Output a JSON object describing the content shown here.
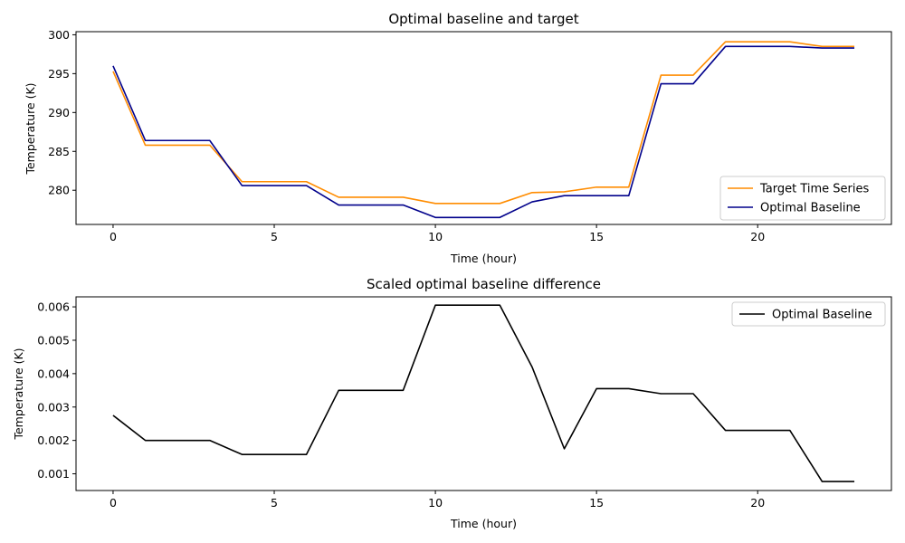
{
  "chart_data": [
    {
      "type": "line",
      "title": "Optimal baseline and target",
      "xlabel": "Time (hour)",
      "ylabel": "Temperature (K)",
      "xlim": [
        -1.15,
        24.15
      ],
      "ylim": [
        275.6,
        300.4
      ],
      "xticks": [
        0,
        5,
        10,
        15,
        20
      ],
      "yticks": [
        280,
        285,
        290,
        295,
        300
      ],
      "legend_position": "lower-right",
      "x": [
        0,
        1,
        2,
        3,
        4,
        5,
        6,
        7,
        8,
        9,
        10,
        11,
        12,
        13,
        14,
        15,
        16,
        17,
        18,
        19,
        20,
        21,
        22,
        23
      ],
      "series": [
        {
          "name": "Target Time Series",
          "color": "#ff8c00",
          "values": [
            295.3,
            285.8,
            285.8,
            285.8,
            281.1,
            281.1,
            281.1,
            279.1,
            279.1,
            279.1,
            278.3,
            278.3,
            278.3,
            279.7,
            279.8,
            280.4,
            280.4,
            294.8,
            294.8,
            299.1,
            299.1,
            299.1,
            298.5,
            298.5
          ]
        },
        {
          "name": "Optimal Baseline",
          "color": "#00008b",
          "values": [
            296.0,
            286.4,
            286.4,
            286.4,
            280.6,
            280.6,
            280.6,
            278.1,
            278.1,
            278.1,
            276.5,
            276.5,
            276.5,
            278.5,
            279.3,
            279.3,
            279.3,
            293.7,
            293.7,
            298.5,
            298.5,
            298.5,
            298.3,
            298.3
          ]
        }
      ]
    },
    {
      "type": "line",
      "title": "Scaled optimal baseline difference",
      "xlabel": "Time (hour)",
      "ylabel": "Temperature (K)",
      "xlim": [
        -1.15,
        24.15
      ],
      "ylim": [
        0.0005,
        0.0063
      ],
      "xticks": [
        0,
        5,
        10,
        15,
        20
      ],
      "yticks": [
        0.001,
        0.002,
        0.003,
        0.004,
        0.005,
        0.006
      ],
      "legend_position": "upper-right",
      "x": [
        0,
        1,
        2,
        3,
        4,
        5,
        6,
        7,
        8,
        9,
        10,
        11,
        12,
        13,
        14,
        15,
        16,
        17,
        18,
        19,
        20,
        21,
        22,
        23
      ],
      "series": [
        {
          "name": "Optimal Baseline",
          "color": "#000000",
          "values": [
            0.00275,
            0.002,
            0.002,
            0.002,
            0.00158,
            0.00158,
            0.00158,
            0.0035,
            0.0035,
            0.0035,
            0.00605,
            0.00605,
            0.00605,
            0.0042,
            0.00175,
            0.00355,
            0.00355,
            0.0034,
            0.0034,
            0.0023,
            0.0023,
            0.0023,
            0.00077,
            0.00077
          ]
        }
      ]
    }
  ]
}
